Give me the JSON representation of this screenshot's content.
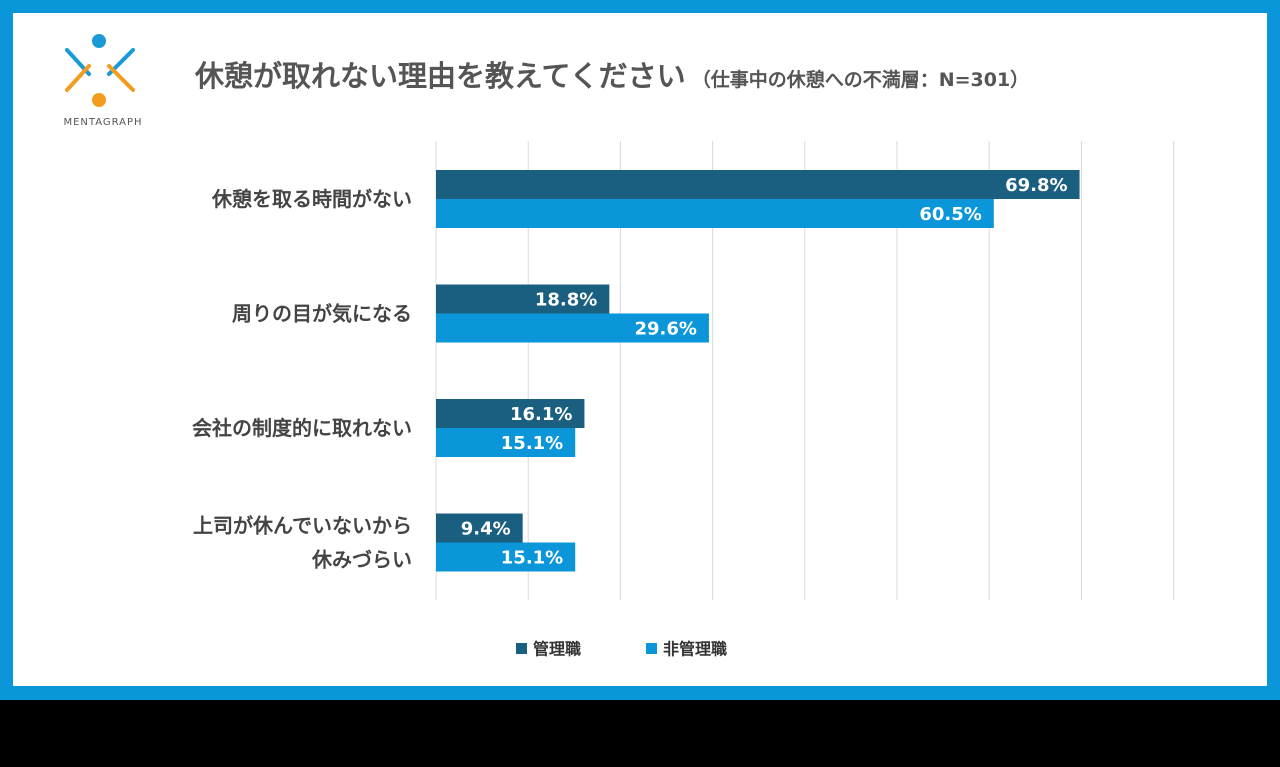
{
  "header": {
    "title": "休憩が取れない理由を教えてください",
    "subtitle": "（仕事中の休憩への不満層：N=301）"
  },
  "logo": {
    "name": "MENTAGRAPH",
    "icon": "mentagraph-logo-icon",
    "colors": {
      "blue": "#1a9ad6",
      "orange": "#f39c1f"
    }
  },
  "colors": {
    "frame": "#0a96d8",
    "manager": "#1a5f80",
    "non_manager": "#0a96d8",
    "grid": "#d9d9d9"
  },
  "chart_data": {
    "type": "bar",
    "orientation": "horizontal",
    "categories": [
      [
        "休憩を取る時間がない"
      ],
      [
        "周りの目が気になる"
      ],
      [
        "会社の制度的に取れない"
      ],
      [
        "上司が休んでいないから",
        "休みづらい"
      ]
    ],
    "series": [
      {
        "name": "管理職",
        "values": [
          69.8,
          18.8,
          16.1,
          9.4
        ],
        "labels": [
          "69.8%",
          "18.8%",
          "16.1%",
          "9.4%"
        ]
      },
      {
        "name": "非管理職",
        "values": [
          60.5,
          29.6,
          15.1,
          15.1
        ],
        "labels": [
          "60.5%",
          "29.6%",
          "15.1%",
          "15.1%"
        ]
      }
    ],
    "xlim": [
      0,
      80
    ],
    "x_gridlines_step": 10,
    "grid": true,
    "axis_tick_labels_shown": false,
    "legend_position": "bottom"
  }
}
